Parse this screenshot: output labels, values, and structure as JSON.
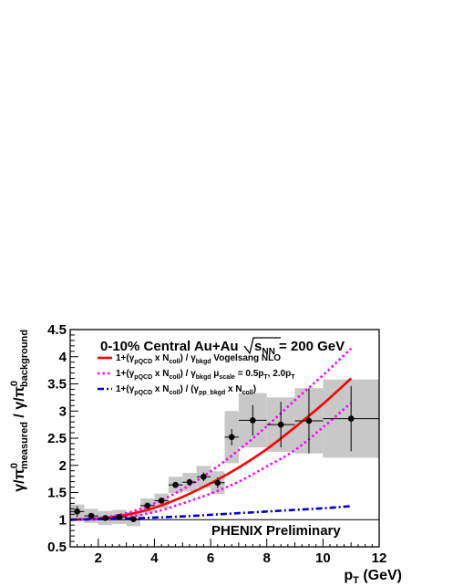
{
  "chart_data": {
    "type": "scatter",
    "title": "0-10% Central  Au+Au",
    "energy_label": "= 200 GeV",
    "energy_symbol": "s",
    "energy_sub": "NN",
    "footer": "PHENIX Preliminary",
    "xlabel": "p",
    "xlabel_sub": "T",
    "xlabel_unit": " (GeV)",
    "ylabel_parts": [
      "γ/π",
      "measured",
      " / γ/π",
      "background"
    ],
    "ylabel_sup": "0",
    "xlim": [
      1,
      12
    ],
    "ylim": [
      0.5,
      4.5
    ],
    "xticks": [
      2,
      4,
      6,
      8,
      10,
      12
    ],
    "yticks": [
      0.5,
      1,
      1.5,
      2,
      2.5,
      3,
      3.5,
      4,
      4.5
    ],
    "ytick_labels": [
      "0.5",
      "1",
      "1.5",
      "2",
      "2.5",
      "3",
      "3.5",
      "4",
      "4.5"
    ],
    "reference_line": 1,
    "points": [
      {
        "x": 1.25,
        "y": 1.15,
        "xerr": 0.25,
        "yerr": 0.1,
        "sys": 0.13
      },
      {
        "x": 1.75,
        "y": 1.07,
        "xerr": 0.25,
        "yerr": 0.05,
        "sys": 0.13
      },
      {
        "x": 2.25,
        "y": 1.03,
        "xerr": 0.25,
        "yerr": 0.04,
        "sys": 0.13
      },
      {
        "x": 2.75,
        "y": 1.05,
        "xerr": 0.25,
        "yerr": 0.04,
        "sys": 0.13
      },
      {
        "x": 3.25,
        "y": 1.01,
        "xerr": 0.25,
        "yerr": 0.04,
        "sys": 0.13
      },
      {
        "x": 3.75,
        "y": 1.26,
        "xerr": 0.25,
        "yerr": 0.04,
        "sys": 0.13
      },
      {
        "x": 4.25,
        "y": 1.35,
        "xerr": 0.25,
        "yerr": 0.04,
        "sys": 0.13
      },
      {
        "x": 4.75,
        "y": 1.64,
        "xerr": 0.25,
        "yerr": 0.05,
        "sys": 0.15
      },
      {
        "x": 5.25,
        "y": 1.69,
        "xerr": 0.25,
        "yerr": 0.06,
        "sys": 0.17
      },
      {
        "x": 5.75,
        "y": 1.79,
        "xerr": 0.25,
        "yerr": 0.08,
        "sys": 0.2
      },
      {
        "x": 6.25,
        "y": 1.68,
        "xerr": 0.25,
        "yerr": 0.1,
        "sys": 0.21
      },
      {
        "x": 6.75,
        "y": 2.52,
        "xerr": 0.25,
        "yerr": 0.15,
        "sys": 0.48
      },
      {
        "x": 7.5,
        "y": 2.83,
        "xerr": 0.5,
        "yerr": 0.28,
        "sys": 0.5
      },
      {
        "x": 8.5,
        "y": 2.75,
        "xerr": 0.5,
        "yerr": 0.42,
        "sys": 0.5
      },
      {
        "x": 9.5,
        "y": 2.82,
        "xerr": 0.5,
        "yerr": 0.6,
        "sys": 0.6
      },
      {
        "x": 11.0,
        "y": 2.86,
        "xerr": 1.0,
        "yerr": 0.6,
        "sys": 0.72
      }
    ],
    "series": [
      {
        "name": "1+(γpQCD x Ncoll) / γbkgd  Vogelsang NLO",
        "legend_parts": [
          "1+(γ",
          "pQCD",
          " x N",
          "coll",
          ") / γ",
          "bkgd",
          "  Vogelsang NLO"
        ],
        "color": "#ff0000",
        "style": "solid",
        "x": [
          1.0,
          2.0,
          3.0,
          4.0,
          5.0,
          6.0,
          7.0,
          8.0,
          9.0,
          10.0,
          11.0
        ],
        "y": [
          1.0,
          1.02,
          1.09,
          1.22,
          1.42,
          1.67,
          1.96,
          2.3,
          2.7,
          3.13,
          3.6
        ]
      },
      {
        "name": "1+(γpQCD x Ncoll) / γbkgd  μscale = 0.5pT, 2.0pT (upper)",
        "legend_parts": [
          "1+(γ",
          "pQCD",
          " x N",
          "coll",
          ") / γ",
          "bkgd",
          "   μ",
          "scale",
          " = 0.5p",
          "T",
          ", 2.0p",
          "T"
        ],
        "color": "#ff00ff",
        "style": "dotted",
        "x": [
          1.0,
          2.0,
          3.0,
          4.0,
          5.0,
          6.0,
          7.0,
          8.0,
          9.0,
          10.0,
          11.0
        ],
        "y": [
          1.0,
          1.03,
          1.12,
          1.3,
          1.56,
          1.89,
          2.28,
          2.72,
          3.2,
          3.66,
          4.15
        ]
      },
      {
        "name": "μscale lower",
        "color": "#ff00ff",
        "style": "dotted",
        "x": [
          1.0,
          2.0,
          3.0,
          4.0,
          5.0,
          6.0,
          7.0,
          8.0,
          9.0,
          10.0,
          11.0
        ],
        "y": [
          1.0,
          1.01,
          1.05,
          1.14,
          1.3,
          1.48,
          1.7,
          1.98,
          2.28,
          2.7,
          3.15
        ]
      },
      {
        "name": "1+(γpQCD x Ncoll) / (γpp_bkgd x Ncoll)",
        "legend_parts": [
          "1+(γ",
          "pQCD",
          " x N",
          "coll",
          ") / (γ",
          "pp_bkgd",
          " x N",
          "coll",
          ")"
        ],
        "color": "#0000cc",
        "style": "dashdot",
        "x": [
          1.0,
          2.0,
          3.0,
          4.0,
          5.0,
          6.0,
          7.0,
          8.0,
          9.0,
          10.0,
          11.0
        ],
        "y": [
          1.0,
          1.01,
          1.02,
          1.04,
          1.06,
          1.09,
          1.12,
          1.15,
          1.18,
          1.21,
          1.25
        ]
      }
    ]
  }
}
